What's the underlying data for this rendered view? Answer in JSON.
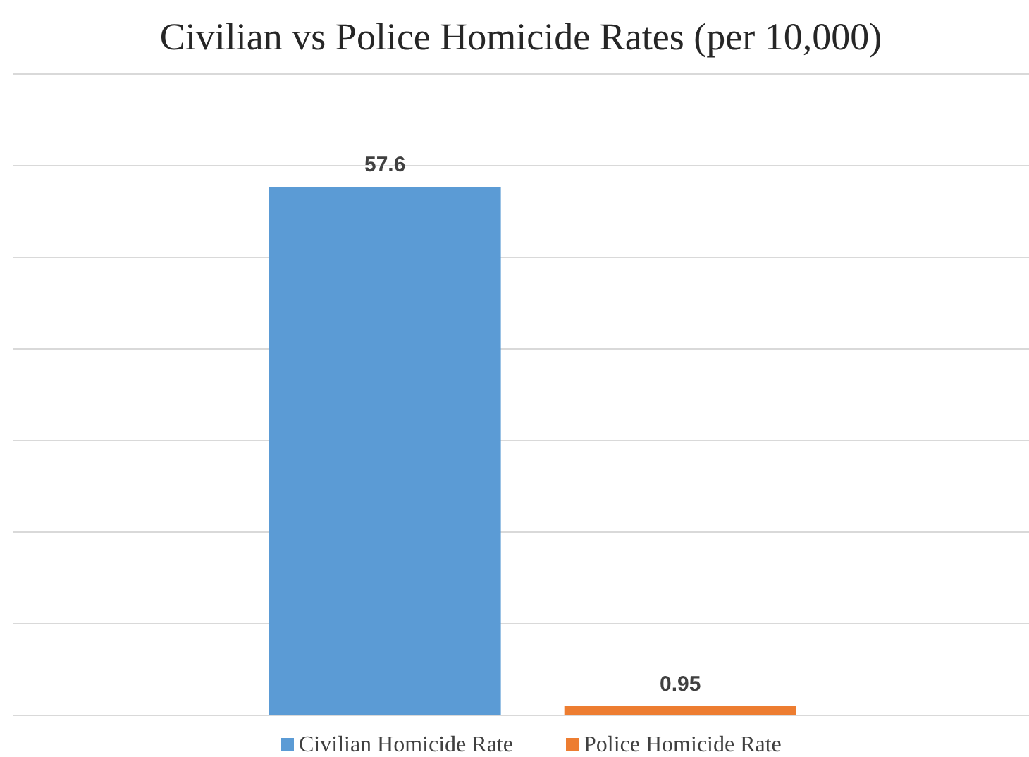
{
  "chart_data": {
    "type": "bar",
    "title": "Civilian vs Police Homicide Rates (per 10,000)",
    "categories": [
      null
    ],
    "series": [
      {
        "name": "Civilian Homicide Rate",
        "color": "#5b9bd5",
        "values": [
          57.6
        ]
      },
      {
        "name": "Police Homicide Rate",
        "color": "#ed7d31",
        "values": [
          0.95
        ]
      }
    ],
    "ylim": [
      0,
      70
    ],
    "yticks": [
      {
        "value": 0,
        "label": null
      },
      {
        "value": 10,
        "label": null
      },
      {
        "value": 20,
        "label": null
      },
      {
        "value": 30,
        "label": null
      },
      {
        "value": 40,
        "label": null
      },
      {
        "value": 50,
        "label": null
      },
      {
        "value": 60,
        "label": null
      },
      {
        "value": 70,
        "label": null
      }
    ],
    "grid": "y",
    "legend": "bottom",
    "data_labels": true,
    "tick_labels": false
  }
}
